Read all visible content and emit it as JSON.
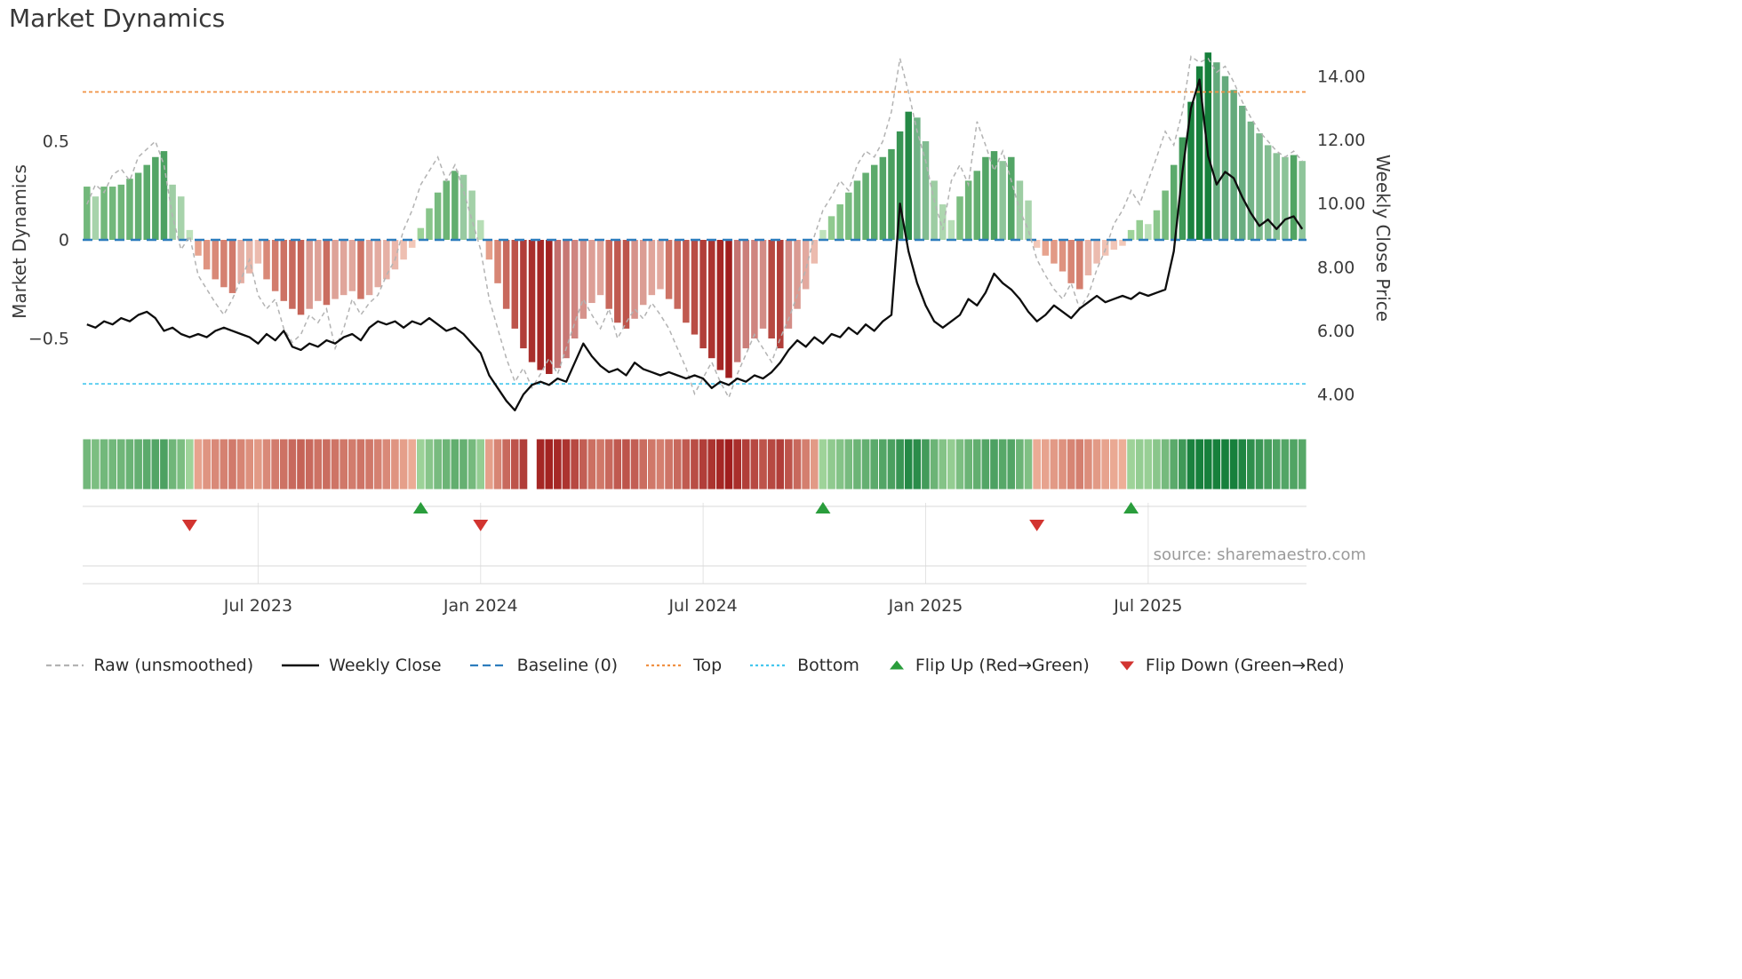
{
  "title": "Market Dynamics",
  "source": "source: sharemaestro.com",
  "axes": {
    "left_label": "Market Dynamics",
    "right_label": "Weekly Close Price",
    "left_ticks": [
      {
        "v": 0.5,
        "label": "0.5"
      },
      {
        "v": 0,
        "label": "0"
      },
      {
        "v": -0.5,
        "label": "−0.5"
      }
    ],
    "right_ticks": [
      {
        "v": 14,
        "label": "14.00"
      },
      {
        "v": 12,
        "label": "12.00"
      },
      {
        "v": 10,
        "label": "10.00"
      },
      {
        "v": 8,
        "label": "8.00"
      },
      {
        "v": 6,
        "label": "6.00"
      },
      {
        "v": 4,
        "label": "4.00"
      }
    ],
    "x_ticks": [
      {
        "i": 20,
        "label": "Jul 2023"
      },
      {
        "i": 46,
        "label": "Jan 2024"
      },
      {
        "i": 72,
        "label": "Jul 2024"
      },
      {
        "i": 98,
        "label": "Jan 2025"
      },
      {
        "i": 124,
        "label": "Jul 2025"
      }
    ]
  },
  "colors": {
    "green_dark": "#17803c",
    "green_light": "#a8d9a0",
    "red_dark": "#9e1a1a",
    "red_light": "#f0b49c",
    "baseline": "#2d7dbd",
    "top": "#f09143",
    "bottom": "#45c7ee",
    "raw": "#b3b3b3",
    "price": "#0d0d0d",
    "flip_up": "#2a9d3c",
    "flip_down": "#d23430"
  },
  "legend": {
    "items": [
      {
        "id": "raw",
        "label": "Raw (unsmoothed)",
        "swatch": "dashed-line",
        "color_key": "raw"
      },
      {
        "id": "weekly-close",
        "label": "Weekly Close",
        "swatch": "solid-line",
        "color_key": "price"
      },
      {
        "id": "baseline",
        "label": "Baseline (0)",
        "swatch": "long-dash-line",
        "color_key": "baseline"
      },
      {
        "id": "top",
        "label": "Top",
        "swatch": "dotted-line",
        "color_key": "top"
      },
      {
        "id": "bottom",
        "label": "Bottom",
        "swatch": "dotted-line",
        "color_key": "bottom"
      },
      {
        "id": "flip-up",
        "label": "Flip Up (Red→Green)",
        "swatch": "triangle-up",
        "color_key": "flip_up"
      },
      {
        "id": "flip-down",
        "label": "Flip Down (Green→Red)",
        "swatch": "triangle-down",
        "color_key": "flip_down"
      }
    ]
  },
  "chart_data": {
    "type": "bar+line",
    "title": "Market Dynamics",
    "x_unit": "week_index",
    "x_range_note": "weekly points, approx Feb 2023 to Nov 2025",
    "n_weeks": 143,
    "left_ylim": [
      -0.9,
      1.0
    ],
    "right_ylim": [
      3.4,
      14.6
    ],
    "baseline": 0,
    "top": 0.75,
    "bottom": -0.73,
    "flip_up_indices": [
      39,
      86,
      122
    ],
    "flip_down_indices": [
      12,
      46,
      111
    ],
    "heatmap_gap_indices": [
      52
    ],
    "oscillator": [
      0.27,
      0.22,
      0.27,
      0.27,
      0.28,
      0.31,
      0.34,
      0.38,
      0.42,
      0.45,
      0.28,
      0.22,
      0.05,
      -0.08,
      -0.15,
      -0.2,
      -0.24,
      -0.27,
      -0.22,
      -0.17,
      -0.12,
      -0.2,
      -0.26,
      -0.31,
      -0.35,
      -0.38,
      -0.35,
      -0.31,
      -0.33,
      -0.3,
      -0.28,
      -0.26,
      -0.3,
      -0.28,
      -0.24,
      -0.2,
      -0.15,
      -0.1,
      -0.04,
      0.06,
      0.16,
      0.24,
      0.3,
      0.35,
      0.33,
      0.25,
      0.1,
      -0.1,
      -0.22,
      -0.35,
      -0.45,
      -0.55,
      -0.62,
      -0.66,
      -0.68,
      -0.65,
      -0.6,
      -0.5,
      -0.4,
      -0.32,
      -0.28,
      -0.35,
      -0.42,
      -0.45,
      -0.4,
      -0.33,
      -0.28,
      -0.25,
      -0.3,
      -0.35,
      -0.42,
      -0.48,
      -0.55,
      -0.6,
      -0.66,
      -0.7,
      -0.62,
      -0.55,
      -0.5,
      -0.45,
      -0.5,
      -0.55,
      -0.45,
      -0.35,
      -0.25,
      -0.12,
      0.05,
      0.12,
      0.18,
      0.24,
      0.3,
      0.34,
      0.38,
      0.42,
      0.46,
      0.55,
      0.65,
      0.62,
      0.5,
      0.3,
      0.18,
      0.1,
      0.22,
      0.3,
      0.35,
      0.42,
      0.45,
      0.4,
      0.42,
      0.3,
      0.2,
      -0.04,
      -0.08,
      -0.12,
      -0.16,
      -0.22,
      -0.25,
      -0.18,
      -0.12,
      -0.08,
      -0.05,
      -0.03,
      0.05,
      0.1,
      0.08,
      0.15,
      0.25,
      0.38,
      0.52,
      0.7,
      0.88,
      0.95,
      0.9,
      0.83,
      0.76,
      0.68,
      0.6,
      0.54,
      0.48,
      0.44,
      0.42,
      0.43,
      0.4
    ],
    "raw": [
      0.18,
      0.28,
      0.24,
      0.33,
      0.36,
      0.3,
      0.42,
      0.46,
      0.5,
      0.38,
      0.12,
      -0.05,
      0.02,
      -0.18,
      -0.25,
      -0.32,
      -0.38,
      -0.3,
      -0.2,
      -0.1,
      -0.28,
      -0.35,
      -0.3,
      -0.45,
      -0.52,
      -0.48,
      -0.38,
      -0.42,
      -0.35,
      -0.55,
      -0.45,
      -0.3,
      -0.38,
      -0.32,
      -0.28,
      -0.18,
      -0.1,
      0.05,
      0.15,
      0.28,
      0.35,
      0.42,
      0.3,
      0.38,
      0.25,
      0.1,
      -0.05,
      -0.3,
      -0.45,
      -0.6,
      -0.72,
      -0.65,
      -0.75,
      -0.68,
      -0.6,
      -0.68,
      -0.55,
      -0.42,
      -0.3,
      -0.38,
      -0.45,
      -0.35,
      -0.5,
      -0.42,
      -0.35,
      -0.4,
      -0.32,
      -0.38,
      -0.45,
      -0.55,
      -0.65,
      -0.78,
      -0.7,
      -0.62,
      -0.72,
      -0.8,
      -0.68,
      -0.58,
      -0.48,
      -0.55,
      -0.62,
      -0.5,
      -0.4,
      -0.28,
      -0.15,
      0.02,
      0.15,
      0.22,
      0.3,
      0.25,
      0.38,
      0.45,
      0.42,
      0.5,
      0.65,
      0.92,
      0.75,
      0.55,
      0.4,
      0.2,
      0.05,
      0.3,
      0.38,
      0.28,
      0.6,
      0.48,
      0.35,
      0.45,
      0.3,
      0.15,
      0.05,
      -0.1,
      -0.18,
      -0.25,
      -0.3,
      -0.22,
      -0.35,
      -0.28,
      -0.15,
      -0.05,
      0.08,
      0.15,
      0.25,
      0.18,
      0.3,
      0.42,
      0.55,
      0.48,
      0.65,
      0.93,
      0.9,
      0.92,
      0.85,
      0.88,
      0.8,
      0.7,
      0.62,
      0.55,
      0.5,
      0.45,
      0.42,
      0.45,
      0.4
    ],
    "price": [
      6.2,
      6.1,
      6.3,
      6.2,
      6.4,
      6.3,
      6.5,
      6.6,
      6.4,
      6.0,
      6.1,
      5.9,
      5.8,
      5.9,
      5.8,
      6.0,
      6.1,
      6.0,
      5.9,
      5.8,
      5.6,
      5.9,
      5.7,
      6.0,
      5.5,
      5.4,
      5.6,
      5.5,
      5.7,
      5.6,
      5.8,
      5.9,
      5.7,
      6.1,
      6.3,
      6.2,
      6.3,
      6.1,
      6.3,
      6.2,
      6.4,
      6.2,
      6.0,
      6.1,
      5.9,
      5.6,
      5.3,
      4.6,
      4.2,
      3.8,
      3.5,
      4.0,
      4.3,
      4.4,
      4.3,
      4.5,
      4.4,
      5.0,
      5.6,
      5.2,
      4.9,
      4.7,
      4.8,
      4.6,
      5.0,
      4.8,
      4.7,
      4.6,
      4.7,
      4.6,
      4.5,
      4.6,
      4.5,
      4.2,
      4.4,
      4.3,
      4.5,
      4.4,
      4.6,
      4.5,
      4.7,
      5.0,
      5.4,
      5.7,
      5.5,
      5.8,
      5.6,
      5.9,
      5.8,
      6.1,
      5.9,
      6.2,
      6.0,
      6.3,
      6.5,
      10.0,
      8.5,
      7.5,
      6.8,
      6.3,
      6.1,
      6.3,
      6.5,
      7.0,
      6.8,
      7.2,
      7.8,
      7.5,
      7.3,
      7.0,
      6.6,
      6.3,
      6.5,
      6.8,
      6.6,
      6.4,
      6.7,
      6.9,
      7.1,
      6.9,
      7.0,
      7.1,
      7.0,
      7.2,
      7.1,
      7.2,
      7.3,
      8.5,
      11.0,
      13.0,
      13.9,
      11.5,
      10.6,
      11.0,
      10.8,
      10.2,
      9.7,
      9.3,
      9.5,
      9.2,
      9.5,
      9.6,
      9.2
    ]
  }
}
